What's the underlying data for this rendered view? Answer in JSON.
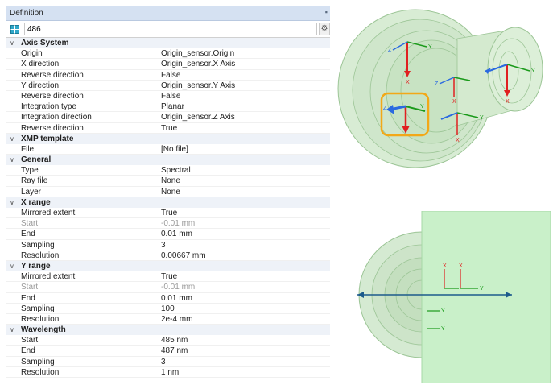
{
  "panel": {
    "title": "Definition",
    "pin_icon": "pin-icon",
    "sensor_icon": "sensor-icon",
    "name_value": "486",
    "settings_icon": "gear-icon"
  },
  "sections": [
    {
      "label": "Axis System",
      "rows": [
        {
          "prop": "Origin",
          "val": "Origin_sensor.Origin"
        },
        {
          "prop": "X direction",
          "val": "Origin_sensor.X Axis"
        },
        {
          "prop": "Reverse direction",
          "val": "False"
        },
        {
          "prop": "Y direction",
          "val": "Origin_sensor.Y Axis"
        },
        {
          "prop": "Reverse direction",
          "val": "False"
        },
        {
          "prop": "Integration type",
          "val": "Planar"
        },
        {
          "prop": "Integration direction",
          "val": "Origin_sensor.Z Axis"
        },
        {
          "prop": "Reverse direction",
          "val": "True"
        }
      ]
    },
    {
      "label": "XMP template",
      "rows": [
        {
          "prop": "File",
          "val": "[No file]"
        }
      ]
    },
    {
      "label": "General",
      "rows": [
        {
          "prop": "Type",
          "val": "Spectral"
        },
        {
          "prop": "Ray file",
          "val": "None"
        },
        {
          "prop": "Layer",
          "val": "None"
        }
      ]
    },
    {
      "label": "X range",
      "rows": [
        {
          "prop": "Mirrored extent",
          "val": "True"
        },
        {
          "prop": "Start",
          "val": "-0.01 mm",
          "disabled": true
        },
        {
          "prop": "End",
          "val": "0.01 mm"
        },
        {
          "prop": "Sampling",
          "val": "3"
        },
        {
          "prop": "Resolution",
          "val": "0.00667 mm"
        }
      ]
    },
    {
      "label": "Y range",
      "rows": [
        {
          "prop": "Mirrored extent",
          "val": "True"
        },
        {
          "prop": "Start",
          "val": "-0.01 mm",
          "disabled": true
        },
        {
          "prop": "End",
          "val": "0.01 mm"
        },
        {
          "prop": "Sampling",
          "val": "100"
        },
        {
          "prop": "Resolution",
          "val": "2e-4 mm"
        }
      ]
    },
    {
      "label": "Wavelength",
      "rows": [
        {
          "prop": "Start",
          "val": "485 nm"
        },
        {
          "prop": "End",
          "val": "487 nm"
        },
        {
          "prop": "Sampling",
          "val": "3"
        },
        {
          "prop": "Resolution",
          "val": "1 nm"
        }
      ]
    }
  ],
  "axis_letters": {
    "x": "X",
    "y": "Y",
    "z": "Z"
  },
  "colors": {
    "header_bg": "#d5e1f2",
    "section_bg": "#eef2f8",
    "geometry_fill": "#cfe8cc",
    "geometry_stroke": "#8fbf8a",
    "plane_fill": "#c9f0c9",
    "axis_x": "#e02020",
    "axis_y": "#1a9a1a",
    "axis_z": "#2a6ae0",
    "highlight": "#f2a818",
    "optical_axis": "#1c5a8c"
  }
}
